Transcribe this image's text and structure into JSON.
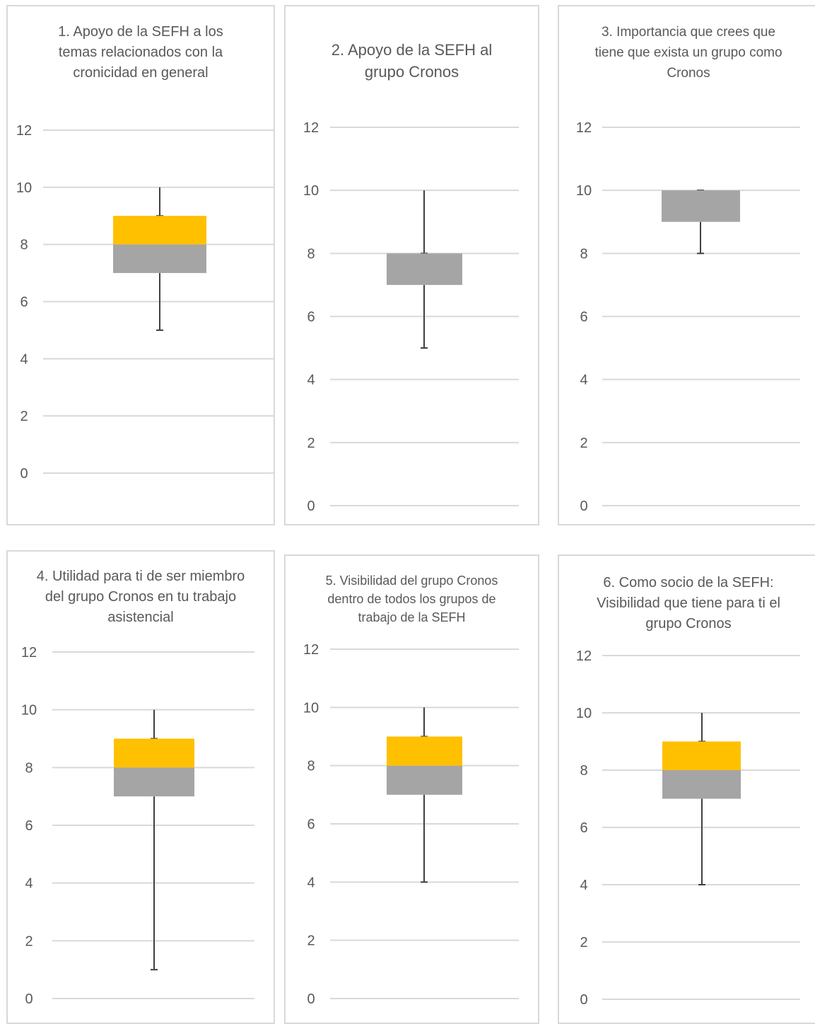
{
  "colors": {
    "upper_box": "#FFC000",
    "lower_box": "#A5A5A5",
    "grid": "#d9d9d9",
    "whisker": "#404040",
    "text": "#595959"
  },
  "chart_data": [
    {
      "type": "boxplot",
      "title": "1. Apoyo de la SEFH a los temas relacionados con la cronicidad en general",
      "ylim": [
        0,
        12
      ],
      "yticks": [
        0,
        2,
        4,
        6,
        8,
        10,
        12
      ],
      "grid": true,
      "min": 5,
      "q1": 7,
      "median": 8,
      "q3": 9,
      "max": 10
    },
    {
      "type": "boxplot",
      "title": "2. Apoyo de la SEFH al grupo Cronos",
      "ylim": [
        0,
        12
      ],
      "yticks": [
        0,
        2,
        4,
        6,
        8,
        10,
        12
      ],
      "grid": true,
      "min": 5,
      "q1": 7,
      "median": 8,
      "q3": 8,
      "max": 10
    },
    {
      "type": "boxplot",
      "title": "3. Importancia que crees que tiene que exista un grupo como Cronos",
      "ylim": [
        0,
        12
      ],
      "yticks": [
        0,
        2,
        4,
        6,
        8,
        10,
        12
      ],
      "grid": true,
      "min": 8,
      "q1": 9,
      "median": 10,
      "q3": 10,
      "max": 10
    },
    {
      "type": "boxplot",
      "title": "4. Utilidad  para ti de ser miembro del grupo Cronos en tu trabajo asistencial",
      "ylim": [
        0,
        12
      ],
      "yticks": [
        0,
        2,
        4,
        6,
        8,
        10,
        12
      ],
      "grid": true,
      "min": 1,
      "q1": 7,
      "median": 8,
      "q3": 9,
      "max": 10
    },
    {
      "type": "boxplot",
      "title": "5. Visibilidad del grupo Cronos dentro de todos los grupos de trabajo de la SEFH",
      "ylim": [
        0,
        12
      ],
      "yticks": [
        0,
        2,
        4,
        6,
        8,
        10,
        12
      ],
      "grid": true,
      "min": 4,
      "q1": 7,
      "median": 8,
      "q3": 9,
      "max": 10
    },
    {
      "type": "boxplot",
      "title": "6. Como socio de la SEFH: Visibilidad que tiene para ti el grupo Cronos",
      "ylim": [
        0,
        12
      ],
      "yticks": [
        0,
        2,
        4,
        6,
        8,
        10,
        12
      ],
      "grid": true,
      "min": 4,
      "q1": 7,
      "median": 8,
      "q3": 9,
      "max": 10
    }
  ]
}
